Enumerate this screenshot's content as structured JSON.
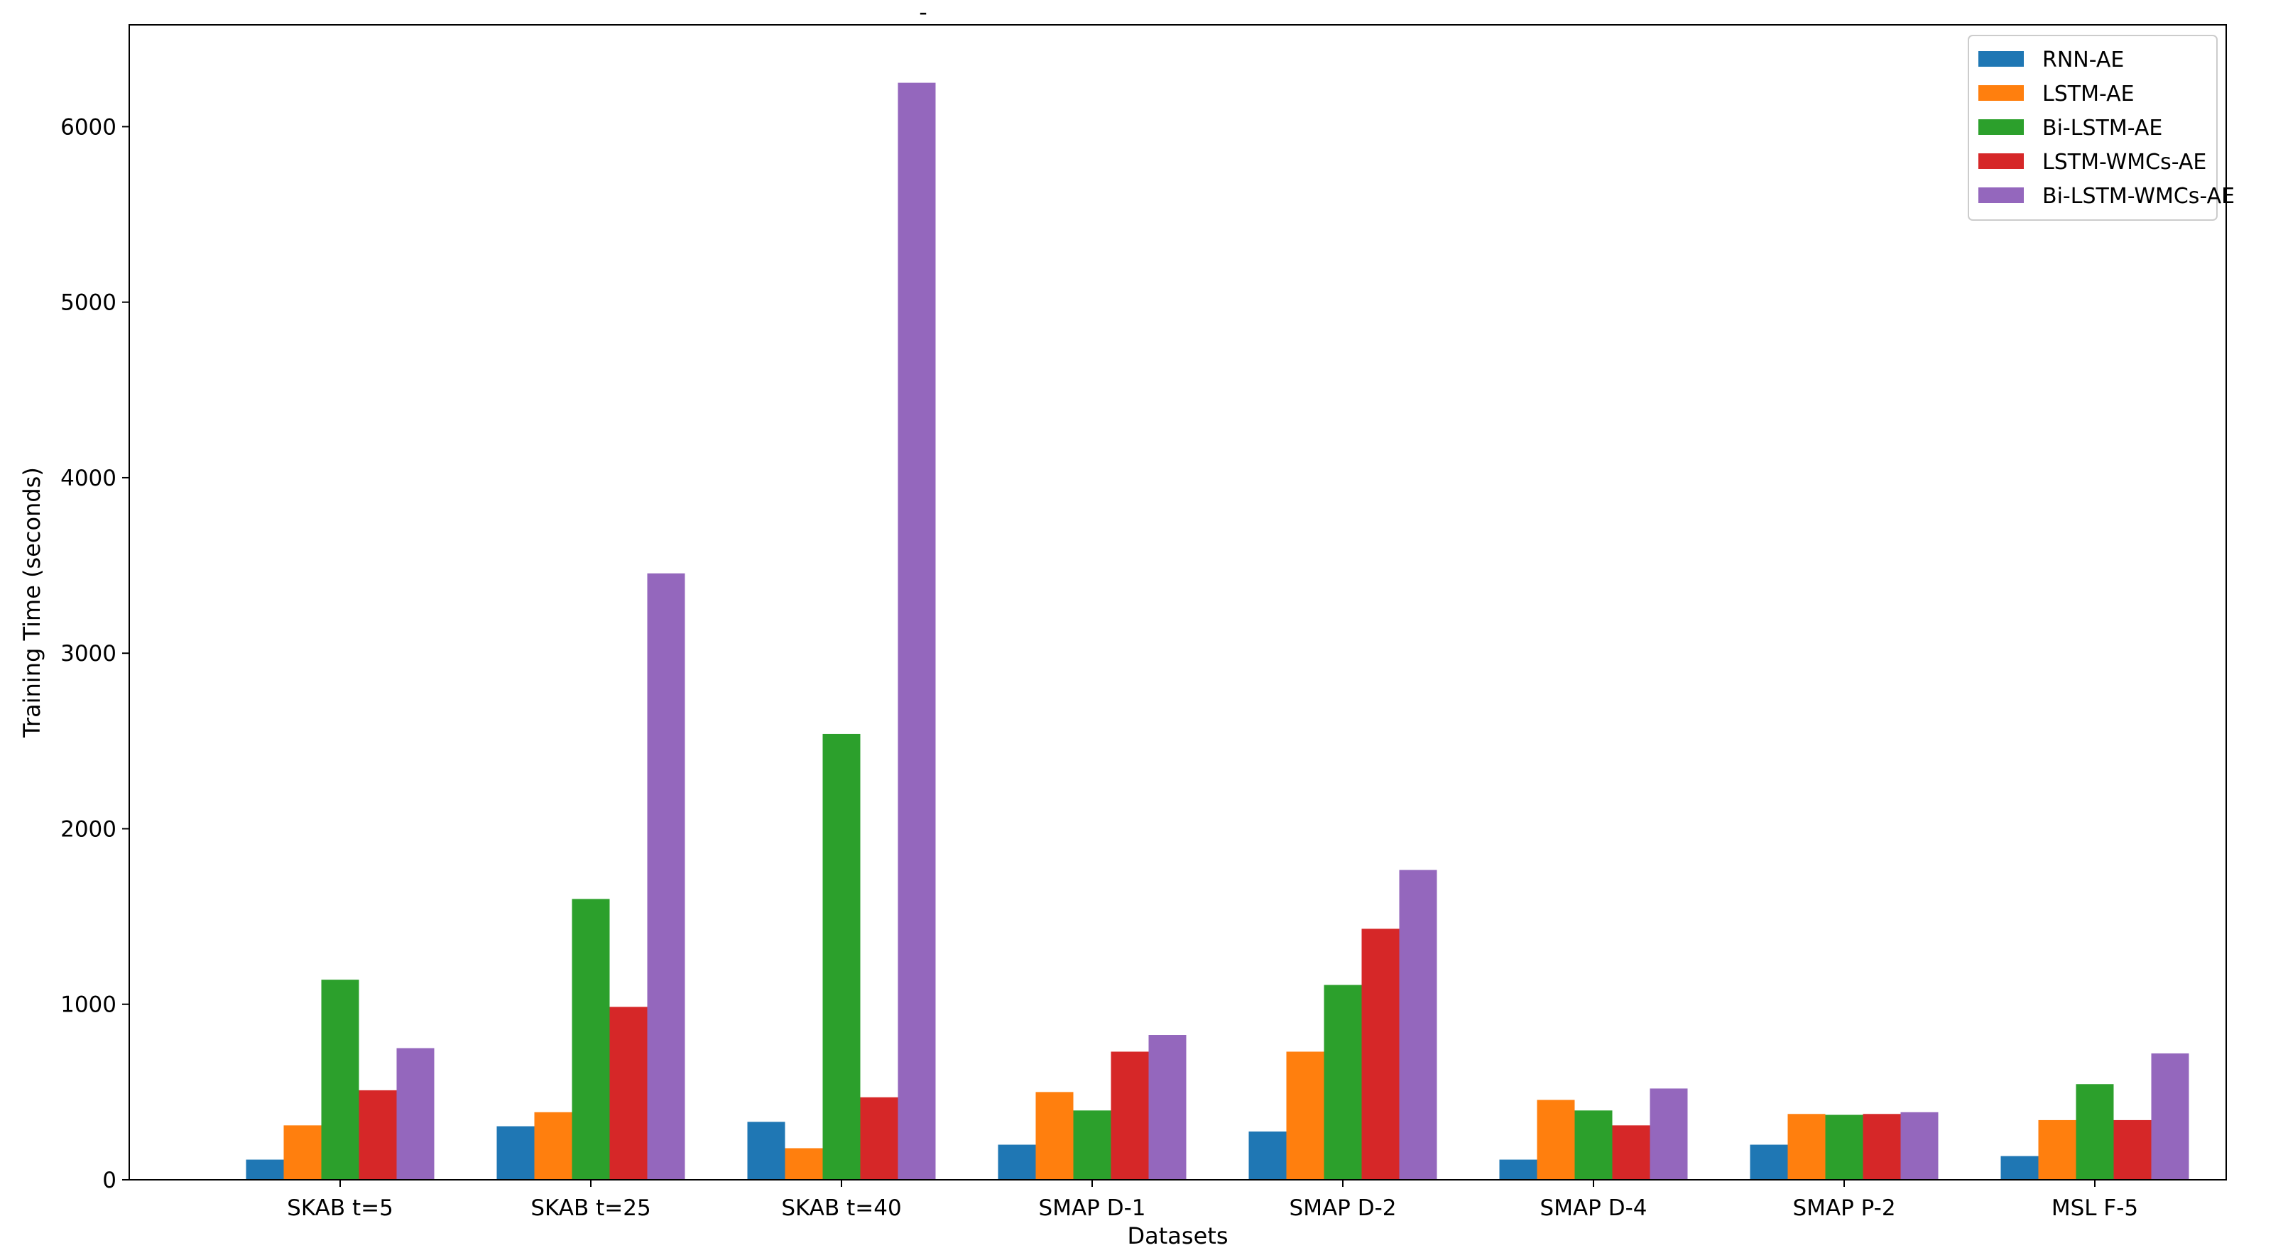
{
  "chart_data": {
    "type": "bar",
    "title": "-",
    "xlabel": "Datasets",
    "ylabel": "Training Time (seconds)",
    "ylim": [
      0,
      6580
    ],
    "yticks": [
      0,
      1000,
      2000,
      3000,
      4000,
      5000,
      6000
    ],
    "legend_position": "top-right",
    "grid": false,
    "categories": [
      "SKAB t=5",
      "SKAB t=25",
      "SKAB t=40",
      "SMAP D-1",
      "SMAP D-2",
      "SMAP D-4",
      "SMAP P-2",
      "MSL F-5"
    ],
    "series": [
      {
        "name": "RNN-AE",
        "color": "#1f77b4",
        "values": [
          115,
          305,
          330,
          200,
          275,
          115,
          200,
          135
        ]
      },
      {
        "name": "LSTM-AE",
        "color": "#ff7f0e",
        "values": [
          310,
          385,
          180,
          500,
          730,
          455,
          375,
          340
        ]
      },
      {
        "name": "Bi-LSTM-AE",
        "color": "#2ca02c",
        "values": [
          1140,
          1600,
          2540,
          395,
          1110,
          395,
          370,
          545
        ]
      },
      {
        "name": "LSTM-WMCs-AE",
        "color": "#d62728",
        "values": [
          510,
          985,
          470,
          730,
          1430,
          310,
          375,
          340
        ]
      },
      {
        "name": "Bi-LSTM-WMCs-AE",
        "color": "#9467bd",
        "values": [
          750,
          3455,
          6250,
          825,
          1765,
          520,
          385,
          720
        ]
      }
    ]
  }
}
